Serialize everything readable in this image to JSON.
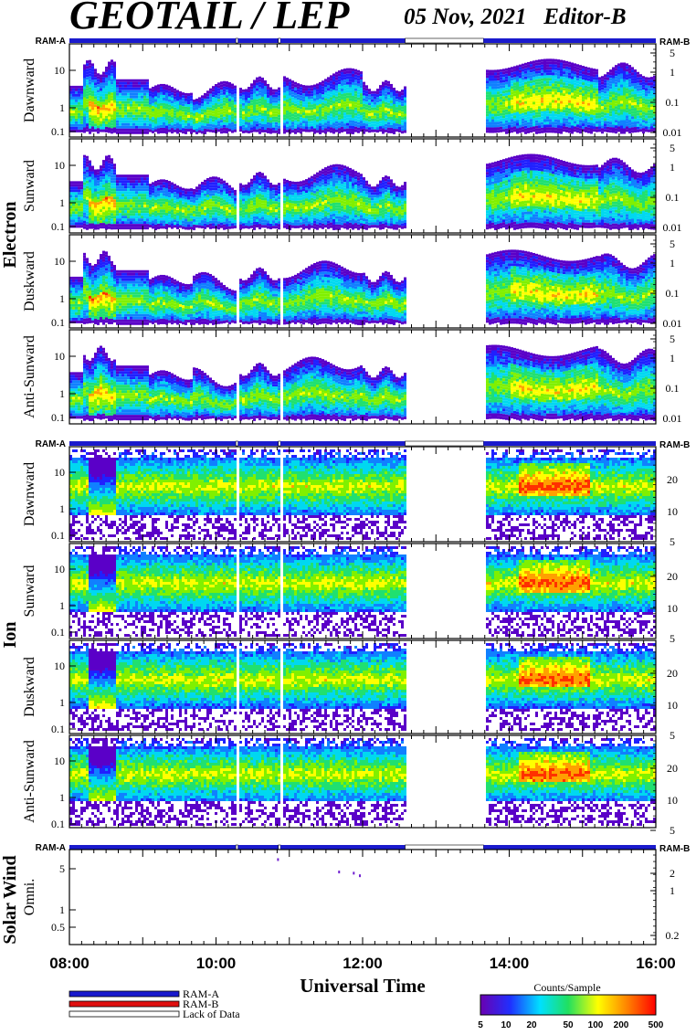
{
  "header": {
    "title": "GEOTAIL / LEP",
    "date_editor": "05 Nov, 2021   Editor-B"
  },
  "ram_bar": {
    "left_label": "RAM-A",
    "right_label": "RAM-B",
    "segments": [
      {
        "start_hour": 8.0,
        "end_hour": 10.27,
        "mode": "RAM-A"
      },
      {
        "start_hour": 10.27,
        "end_hour": 10.3,
        "mode": "Lack of Data"
      },
      {
        "start_hour": 10.3,
        "end_hour": 10.85,
        "mode": "RAM-A"
      },
      {
        "start_hour": 10.85,
        "end_hour": 10.88,
        "mode": "Lack of Data"
      },
      {
        "start_hour": 10.88,
        "end_hour": 12.58,
        "mode": "RAM-A"
      },
      {
        "start_hour": 12.58,
        "end_hour": 13.65,
        "mode": "Lack of Data"
      },
      {
        "start_hour": 13.65,
        "end_hour": 16.0,
        "mode": "RAM-A"
      }
    ]
  },
  "groups": {
    "electron": "Electron",
    "ion": "Ion",
    "solar_wind": "Solar Wind"
  },
  "x_axis": {
    "title": "Universal Time",
    "tick_labels": [
      "08:00",
      "10:00",
      "12:00",
      "14:00",
      "16:00"
    ]
  },
  "legend": {
    "items": [
      {
        "label": "RAM-A",
        "color": "#1a1acd"
      },
      {
        "label": "RAM-B",
        "color": "#e01010"
      },
      {
        "label": "Lack of Data",
        "color": "#ffffff"
      }
    ]
  },
  "colorbar": {
    "title": "Counts/Sample",
    "tick_labels": [
      "5",
      "10",
      "20",
      "50",
      "100",
      "200",
      "500"
    ],
    "colors": [
      "#6a00b0",
      "#2030ff",
      "#00e0ff",
      "#20e060",
      "#ffff00",
      "#ff8000",
      "#ff0000"
    ]
  },
  "chart_data": [
    {
      "type": "heatmap",
      "group": "Electron",
      "ylabel": "Dawnward",
      "x_range": [
        "08:00",
        "16:00"
      ],
      "y_scale": "log",
      "left_ticks": [
        "10",
        "1",
        "0.1"
      ],
      "right_ticks": [
        "5",
        "1",
        "0.1",
        "0.01"
      ],
      "data_gaps": [
        [
          10.27,
          10.3
        ],
        [
          10.85,
          10.88
        ],
        [
          12.58,
          13.65
        ]
      ]
    },
    {
      "type": "heatmap",
      "group": "Electron",
      "ylabel": "Sunward",
      "x_range": [
        "08:00",
        "16:00"
      ],
      "y_scale": "log",
      "left_ticks": [
        "10",
        "1",
        "0.1"
      ],
      "right_ticks": [
        "5",
        "1",
        "0.1",
        "0.01"
      ],
      "data_gaps": [
        [
          10.27,
          10.3
        ],
        [
          10.85,
          10.88
        ],
        [
          12.58,
          13.65
        ]
      ]
    },
    {
      "type": "heatmap",
      "group": "Electron",
      "ylabel": "Duskward",
      "x_range": [
        "08:00",
        "16:00"
      ],
      "y_scale": "log",
      "left_ticks": [
        "10",
        "1",
        "0.1"
      ],
      "right_ticks": [
        "5",
        "1",
        "0.1",
        "0.01"
      ],
      "data_gaps": [
        [
          10.27,
          10.3
        ],
        [
          10.85,
          10.88
        ],
        [
          12.58,
          13.65
        ]
      ]
    },
    {
      "type": "heatmap",
      "group": "Electron",
      "ylabel": "Anti-Sunward",
      "x_range": [
        "08:00",
        "16:00"
      ],
      "y_scale": "log",
      "left_ticks": [
        "10",
        "1",
        "0.1"
      ],
      "right_ticks": [
        "5",
        "1",
        "0.1",
        "0.01"
      ],
      "data_gaps": [
        [
          10.27,
          10.3
        ],
        [
          10.85,
          10.88
        ],
        [
          12.58,
          13.65
        ]
      ]
    },
    {
      "type": "heatmap",
      "group": "Ion",
      "ylabel": "Dawnward",
      "x_range": [
        "08:00",
        "16:00"
      ],
      "y_scale": "log",
      "left_ticks": [
        "10",
        "1",
        "0.1"
      ],
      "right_ticks": [
        "20",
        "10",
        "5"
      ],
      "data_gaps": [
        [
          10.27,
          10.3
        ],
        [
          10.85,
          10.88
        ],
        [
          12.58,
          13.65
        ]
      ]
    },
    {
      "type": "heatmap",
      "group": "Ion",
      "ylabel": "Sunward",
      "x_range": [
        "08:00",
        "16:00"
      ],
      "y_scale": "log",
      "left_ticks": [
        "10",
        "1",
        "0.1"
      ],
      "right_ticks": [
        "20",
        "10",
        "5"
      ],
      "data_gaps": [
        [
          10.27,
          10.3
        ],
        [
          10.85,
          10.88
        ],
        [
          12.58,
          13.65
        ]
      ]
    },
    {
      "type": "heatmap",
      "group": "Ion",
      "ylabel": "Duskward",
      "x_range": [
        "08:00",
        "16:00"
      ],
      "y_scale": "log",
      "left_ticks": [
        "10",
        "1",
        "0.1"
      ],
      "right_ticks": [
        "20",
        "10",
        "5"
      ],
      "data_gaps": [
        [
          10.27,
          10.3
        ],
        [
          10.85,
          10.88
        ],
        [
          12.58,
          13.65
        ]
      ]
    },
    {
      "type": "heatmap",
      "group": "Ion",
      "ylabel": "Anti-Sunward",
      "x_range": [
        "08:00",
        "16:00"
      ],
      "y_scale": "log",
      "left_ticks": [
        "10",
        "1",
        "0.1"
      ],
      "right_ticks": [
        "20",
        "10",
        "5"
      ],
      "data_gaps": [
        [
          10.27,
          10.3
        ],
        [
          10.85,
          10.88
        ],
        [
          12.58,
          13.65
        ]
      ]
    },
    {
      "type": "scatter",
      "group": "Solar Wind",
      "ylabel": "Omni.",
      "x_range": [
        "08:00",
        "16:00"
      ],
      "y_scale": "log",
      "left_ticks": [
        "5",
        "1",
        "0.5"
      ],
      "right_ticks": [
        "2",
        "1",
        "0.2"
      ],
      "points": [
        {
          "x": "10:50",
          "y": 7.0
        },
        {
          "x": "11:40",
          "y": 4.2
        },
        {
          "x": "11:52",
          "y": 4.0
        },
        {
          "x": "11:57",
          "y": 3.6
        }
      ]
    }
  ]
}
